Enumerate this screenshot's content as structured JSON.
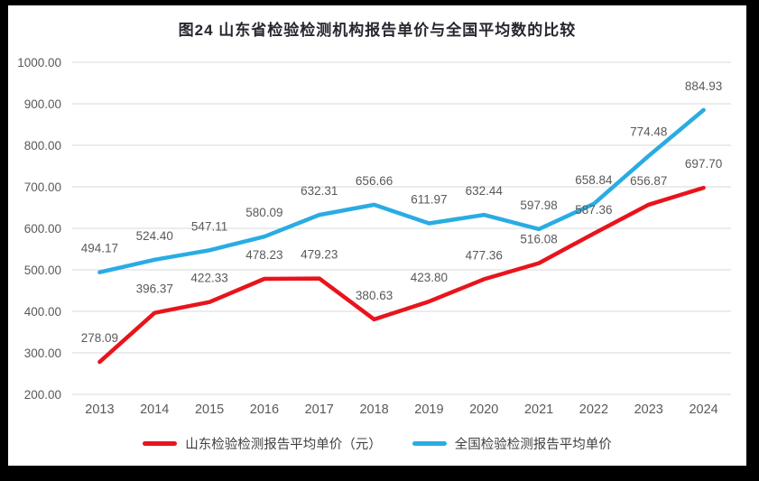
{
  "frame": {
    "background_color": "#000000"
  },
  "chart_data": {
    "type": "line",
    "title": "图24  山东省检验检测机构报告单价与全国平均数的比较",
    "title_color": "#26262e",
    "categories": [
      "2013",
      "2014",
      "2015",
      "2016",
      "2017",
      "2018",
      "2019",
      "2020",
      "2021",
      "2022",
      "2023",
      "2024"
    ],
    "series": [
      {
        "name": "山东检验检测报告平均单价（元）",
        "color": "#e8141c",
        "values": [
          278.09,
          396.37,
          422.33,
          478.23,
          479.23,
          380.63,
          423.8,
          477.36,
          516.08,
          587.36,
          656.87,
          697.7
        ]
      },
      {
        "name": "全国检验检测报告平均单价",
        "color": "#29ace3",
        "values": [
          494.17,
          524.4,
          547.11,
          580.09,
          632.31,
          656.66,
          611.97,
          632.44,
          597.98,
          658.84,
          774.48,
          884.93
        ]
      }
    ],
    "ylim": [
      200,
      1000
    ],
    "ytick_step": 100,
    "ytick_decimals": 2,
    "value_labels": true,
    "value_label_decimals": 2,
    "grid": true,
    "gridline_color": "#d9d9d9",
    "tick_label_color": "#595959",
    "value_label_color": "#595959",
    "legend_position": "bottom"
  }
}
